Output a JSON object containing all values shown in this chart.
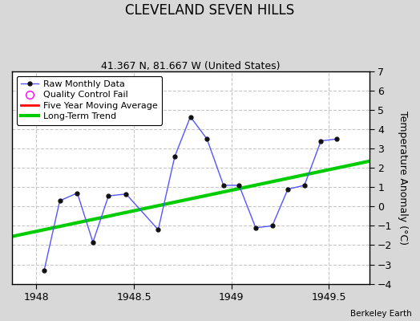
{
  "title": "CLEVELAND SEVEN HILLS",
  "subtitle": "41.367 N, 81.667 W (United States)",
  "attribution": "Berkeley Earth",
  "ylabel": "Temperature Anomaly (°C)",
  "xlim": [
    1947.875,
    1949.708
  ],
  "ylim": [
    -4,
    7
  ],
  "xticks": [
    1948,
    1948.5,
    1949,
    1949.5
  ],
  "yticks": [
    -4,
    -3,
    -2,
    -1,
    0,
    1,
    2,
    3,
    4,
    5,
    6,
    7
  ],
  "background_color": "#d8d8d8",
  "plot_bg_color": "#ffffff",
  "raw_x": [
    1948.04,
    1948.12,
    1948.21,
    1948.29,
    1948.37,
    1948.46,
    1948.625,
    1948.71,
    1948.79,
    1948.875,
    1948.96,
    1949.04,
    1949.125,
    1949.21,
    1949.29,
    1949.375,
    1949.46,
    1949.54
  ],
  "raw_y": [
    -3.3,
    0.3,
    0.7,
    -1.85,
    0.55,
    0.65,
    -1.2,
    2.6,
    4.65,
    3.5,
    1.1,
    1.1,
    -1.1,
    -1.0,
    0.9,
    1.1,
    3.4,
    3.5
  ],
  "trend_x": [
    1947.875,
    1949.708
  ],
  "trend_y": [
    -1.55,
    2.35
  ],
  "raw_color": "#5555ff",
  "trend_color": "#00cc00",
  "ma_color": "#ff0000",
  "qc_color": "#ff00ff",
  "grid_color": "#c8c8c8",
  "title_fontsize": 12,
  "subtitle_fontsize": 9,
  "tick_fontsize": 9,
  "ylabel_fontsize": 9
}
